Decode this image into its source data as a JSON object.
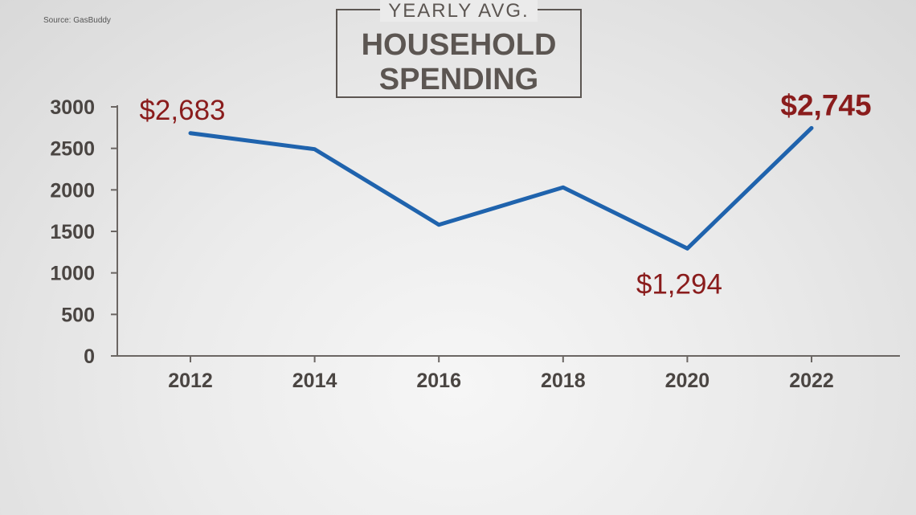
{
  "source": "Source: GasBuddy",
  "title": {
    "top": "YEARLY AVG.",
    "line1": "HOUSEHOLD",
    "line2": "SPENDING"
  },
  "colors": {
    "line": "#1f63ad",
    "annotation": "#8a1c1c",
    "axis": "#4a4542"
  },
  "chart_data": {
    "type": "line",
    "x": [
      "2012",
      "2014",
      "2016",
      "2018",
      "2020",
      "2022"
    ],
    "values": [
      2683,
      2490,
      1580,
      2030,
      1294,
      2745
    ],
    "ylim": [
      0,
      3000
    ],
    "yticks": [
      0,
      500,
      1000,
      1500,
      2000,
      2500,
      3000
    ],
    "grid": false,
    "annotations": [
      {
        "label": "$2,683",
        "index": 0,
        "bold": false
      },
      {
        "label": "$1,294",
        "index": 4,
        "bold": false
      },
      {
        "label": "$2,745",
        "index": 5,
        "bold": true
      }
    ]
  }
}
